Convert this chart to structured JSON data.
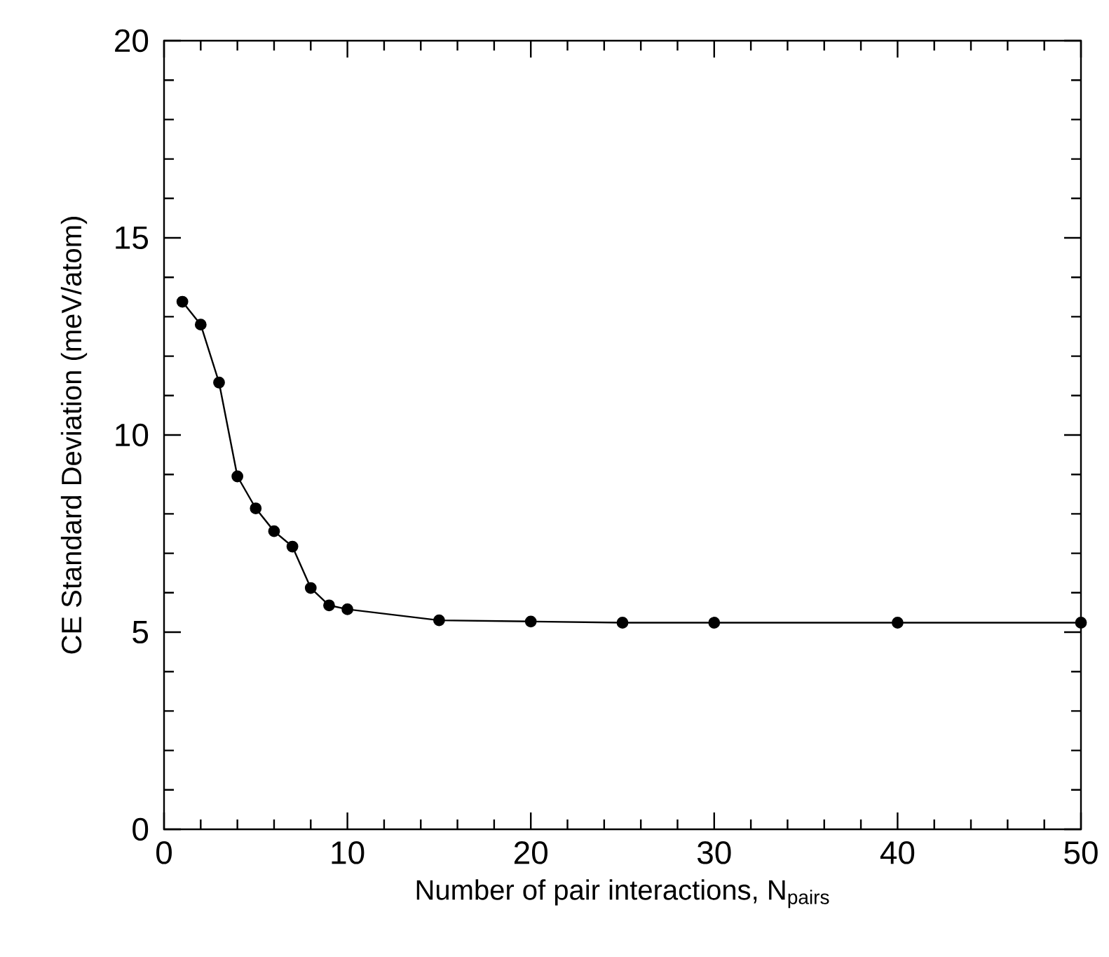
{
  "chart_data": {
    "type": "line",
    "xlabel": "Number of pair interactions, N$_{pairs}$",
    "ylabel": "CE Standard Deviation  (meV/atom)",
    "x": [
      1,
      2,
      3,
      4,
      5,
      6,
      7,
      8,
      9,
      10,
      15,
      20,
      25,
      30,
      40,
      50
    ],
    "series": [
      {
        "color": "#000000",
        "values": [
          13.38,
          12.8,
          11.33,
          8.95,
          8.14,
          7.56,
          7.17,
          6.12,
          5.68,
          5.58,
          5.3,
          5.27,
          5.24,
          5.24,
          5.24,
          5.24
        ]
      }
    ],
    "xlim": [
      0,
      50
    ],
    "ylim": [
      0,
      20
    ],
    "xticks": [
      0,
      10,
      20,
      30,
      40,
      50
    ],
    "yticks": [
      0,
      5,
      10,
      15,
      20
    ],
    "grid": false,
    "marker": "circle",
    "line_style": "solid"
  }
}
